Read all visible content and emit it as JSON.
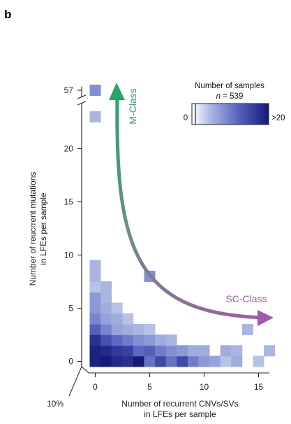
{
  "panel_label": "b",
  "chart_data": {
    "type": "heatmap",
    "xlabel": [
      "Number of recurrent CNVs/SVs",
      "in LFEs per sample"
    ],
    "ylabel": [
      "Number of reucrrent mutations",
      "in LFEs per sample"
    ],
    "xticks": [
      0,
      5,
      10,
      15
    ],
    "yticks": [
      0,
      5,
      10,
      15,
      20
    ],
    "y_break_tick": 57,
    "xlim": [
      -0.5,
      16.5
    ],
    "ylim": [
      -0.5,
      24
    ],
    "corner_note": "10%",
    "legend": {
      "title": "Number of samples",
      "subtitle_italic": "n",
      "subtitle_rest": " = 539",
      "min_label": "0",
      "max_label": ">20",
      "color_low": "#ffffff",
      "color_high": "#14197a"
    },
    "arrows": [
      {
        "label": "M-Class",
        "color": "#2aa56a"
      },
      {
        "label": "SC-Class",
        "color": "#a25aa6"
      }
    ],
    "cells": [
      {
        "x": 0,
        "y": 0,
        "v": 23
      },
      {
        "x": 1,
        "y": 0,
        "v": 24
      },
      {
        "x": 2,
        "y": 0,
        "v": 22
      },
      {
        "x": 3,
        "y": 0,
        "v": 21
      },
      {
        "x": 4,
        "y": 0,
        "v": 24
      },
      {
        "x": 5,
        "y": 0,
        "v": 13
      },
      {
        "x": 6,
        "y": 0,
        "v": 18
      },
      {
        "x": 7,
        "y": 0,
        "v": 13
      },
      {
        "x": 8,
        "y": 0,
        "v": 18
      },
      {
        "x": 9,
        "y": 0,
        "v": 12
      },
      {
        "x": 10,
        "y": 0,
        "v": 9
      },
      {
        "x": 11,
        "y": 0,
        "v": 8
      },
      {
        "x": 12,
        "y": 0,
        "v": 5
      },
      {
        "x": 13,
        "y": 0,
        "v": 7
      },
      {
        "x": 15,
        "y": 0,
        "v": 5
      },
      {
        "x": 0,
        "y": 1,
        "v": 23
      },
      {
        "x": 1,
        "y": 1,
        "v": 22
      },
      {
        "x": 2,
        "y": 1,
        "v": 20
      },
      {
        "x": 3,
        "y": 1,
        "v": 19
      },
      {
        "x": 4,
        "y": 1,
        "v": 14
      },
      {
        "x": 5,
        "y": 1,
        "v": 15
      },
      {
        "x": 6,
        "y": 1,
        "v": 12
      },
      {
        "x": 7,
        "y": 1,
        "v": 10
      },
      {
        "x": 8,
        "y": 1,
        "v": 9
      },
      {
        "x": 9,
        "y": 1,
        "v": 7
      },
      {
        "x": 10,
        "y": 1,
        "v": 7
      },
      {
        "x": 12,
        "y": 1,
        "v": 7
      },
      {
        "x": 13,
        "y": 1,
        "v": 6
      },
      {
        "x": 16,
        "y": 1,
        "v": 6
      },
      {
        "x": 0,
        "y": 2,
        "v": 21
      },
      {
        "x": 1,
        "y": 2,
        "v": 17
      },
      {
        "x": 2,
        "y": 2,
        "v": 14
      },
      {
        "x": 3,
        "y": 2,
        "v": 12
      },
      {
        "x": 4,
        "y": 2,
        "v": 10
      },
      {
        "x": 5,
        "y": 2,
        "v": 9
      },
      {
        "x": 6,
        "y": 2,
        "v": 7
      },
      {
        "x": 7,
        "y": 2,
        "v": 6
      },
      {
        "x": 0,
        "y": 3,
        "v": 15
      },
      {
        "x": 1,
        "y": 3,
        "v": 11
      },
      {
        "x": 2,
        "y": 3,
        "v": 8
      },
      {
        "x": 3,
        "y": 3,
        "v": 7
      },
      {
        "x": 4,
        "y": 3,
        "v": 6
      },
      {
        "x": 5,
        "y": 3,
        "v": 5
      },
      {
        "x": 14,
        "y": 3,
        "v": 6
      },
      {
        "x": 0,
        "y": 4,
        "v": 11
      },
      {
        "x": 1,
        "y": 4,
        "v": 8
      },
      {
        "x": 2,
        "y": 4,
        "v": 7
      },
      {
        "x": 3,
        "y": 4,
        "v": 5
      },
      {
        "x": 0,
        "y": 5,
        "v": 9
      },
      {
        "x": 1,
        "y": 5,
        "v": 7
      },
      {
        "x": 2,
        "y": 5,
        "v": 5
      },
      {
        "x": 0,
        "y": 6,
        "v": 9
      },
      {
        "x": 1,
        "y": 6,
        "v": 6
      },
      {
        "x": 0,
        "y": 7,
        "v": 5
      },
      {
        "x": 1,
        "y": 7,
        "v": 6
      },
      {
        "x": 0,
        "y": 8,
        "v": 6
      },
      {
        "x": 5,
        "y": 8,
        "v": 10
      },
      {
        "x": 0,
        "y": 9,
        "v": 6
      },
      {
        "x": 0,
        "y": 23,
        "v": 6
      },
      {
        "x": 0,
        "y": 57,
        "v": 10
      }
    ]
  }
}
